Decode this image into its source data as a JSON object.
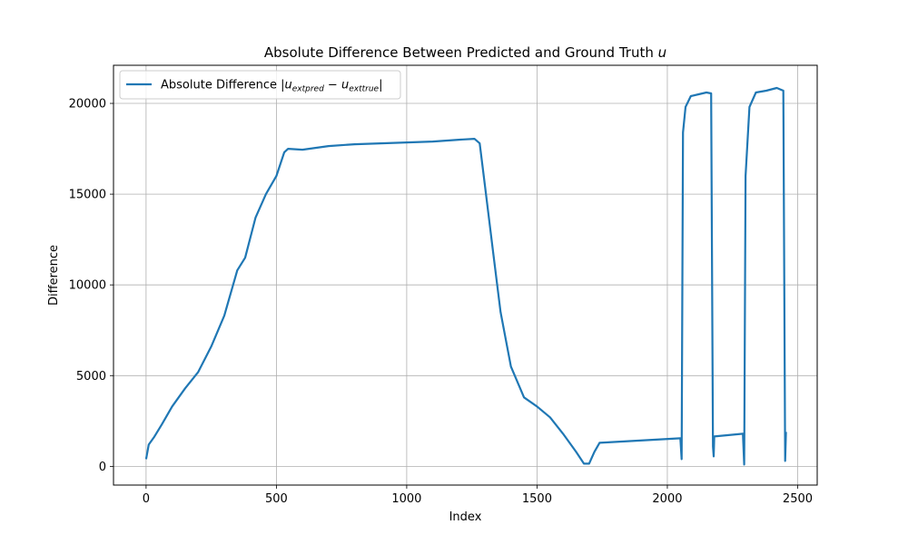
{
  "chart_data": {
    "type": "line",
    "title": "Absolute Difference Between Predicted and Ground Truth u",
    "title_prefix": "Absolute Difference Between Predicted and Ground Truth ",
    "title_var": "u",
    "xlabel": "Index",
    "ylabel": "Difference",
    "xlim": [
      -125,
      2575
    ],
    "ylim": [
      -1030,
      22100
    ],
    "xticks": [
      0,
      500,
      1000,
      1500,
      2000,
      2500
    ],
    "xtick_labels": [
      "0",
      "500",
      "1000",
      "1500",
      "2000",
      "2500"
    ],
    "yticks": [
      0,
      5000,
      10000,
      15000,
      20000
    ],
    "ytick_labels": [
      "0",
      "5000",
      "10000",
      "15000",
      "20000"
    ],
    "grid": true,
    "legend_position": "top-left",
    "series": [
      {
        "name": "Absolute Difference |u_extpred − u_exttrue|",
        "legend_prefix": "Absolute Difference |",
        "legend_u1": "u",
        "legend_sub1": "extpred",
        "legend_minus": " − ",
        "legend_u2": "u",
        "legend_sub2": "exttrue",
        "legend_suffix": "|",
        "color": "#1f77b4",
        "points": [
          [
            0,
            400
          ],
          [
            10,
            1200
          ],
          [
            30,
            1600
          ],
          [
            60,
            2300
          ],
          [
            100,
            3300
          ],
          [
            150,
            4300
          ],
          [
            200,
            5200
          ],
          [
            250,
            6600
          ],
          [
            300,
            8300
          ],
          [
            350,
            10800
          ],
          [
            380,
            11500
          ],
          [
            420,
            13700
          ],
          [
            460,
            15000
          ],
          [
            500,
            16000
          ],
          [
            530,
            17300
          ],
          [
            545,
            17500
          ],
          [
            600,
            17450
          ],
          [
            700,
            17650
          ],
          [
            800,
            17750
          ],
          [
            900,
            17800
          ],
          [
            1000,
            17850
          ],
          [
            1100,
            17900
          ],
          [
            1200,
            18000
          ],
          [
            1260,
            18050
          ],
          [
            1280,
            17800
          ],
          [
            1300,
            15500
          ],
          [
            1330,
            12000
          ],
          [
            1360,
            8500
          ],
          [
            1400,
            5500
          ],
          [
            1450,
            3800
          ],
          [
            1500,
            3300
          ],
          [
            1550,
            2700
          ],
          [
            1600,
            1800
          ],
          [
            1650,
            800
          ],
          [
            1680,
            150
          ],
          [
            1700,
            150
          ],
          [
            1720,
            800
          ],
          [
            1740,
            1300
          ],
          [
            2050,
            1550
          ],
          [
            2055,
            400
          ],
          [
            2060,
            18400
          ],
          [
            2070,
            19800
          ],
          [
            2090,
            20400
          ],
          [
            2120,
            20500
          ],
          [
            2150,
            20600
          ],
          [
            2168,
            20550
          ],
          [
            2175,
            1100
          ],
          [
            2178,
            550
          ],
          [
            2180,
            1650
          ],
          [
            2290,
            1800
          ],
          [
            2295,
            100
          ],
          [
            2300,
            16000
          ],
          [
            2315,
            19800
          ],
          [
            2340,
            20600
          ],
          [
            2380,
            20700
          ],
          [
            2420,
            20850
          ],
          [
            2445,
            20700
          ],
          [
            2452,
            300
          ],
          [
            2455,
            1900
          ]
        ]
      }
    ]
  }
}
